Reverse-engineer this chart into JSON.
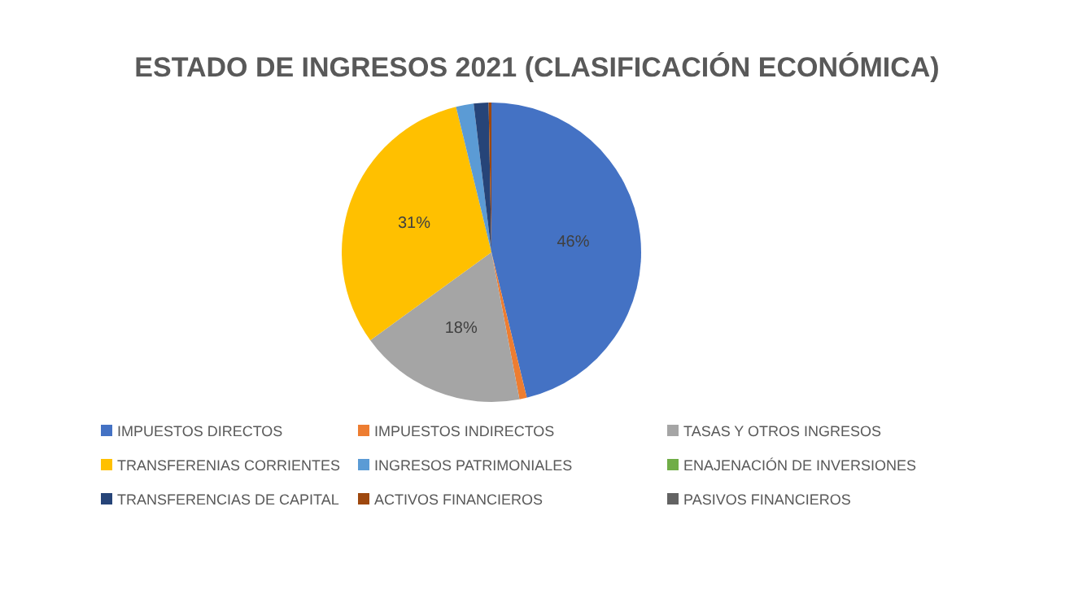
{
  "chart_data": {
    "type": "pie",
    "title": "ESTADO DE INGRESOS 2021 (CLASIFICACIÓN ECONÓMICA)",
    "categories": [
      "IMPUESTOS DIRECTOS",
      "IMPUESTOS INDIRECTOS",
      "TASAS Y OTROS INGRESOS",
      "TRANSFERENIAS CORRIENTES",
      "INGRESOS PATRIMONIALES",
      "ENAJENACIÓN DE INVERSIONES",
      "TRANSFERENCIAS DE CAPITAL",
      "ACTIVOS FINANCIEROS",
      "PASIVOS FINANCIEROS"
    ],
    "values": [
      46.2,
      0.8,
      18.0,
      31.2,
      1.9,
      0,
      1.6,
      0.3,
      0
    ],
    "value_labels": [
      "46%",
      null,
      "18%",
      "31%",
      null,
      null,
      null,
      null,
      null
    ],
    "colors": [
      "#4472c4",
      "#ed7d31",
      "#a5a5a5",
      "#ffc000",
      "#5b9bd5",
      "#70ad47",
      "#264478",
      "#9e480e",
      "#636363"
    ],
    "legend": "bottom"
  }
}
